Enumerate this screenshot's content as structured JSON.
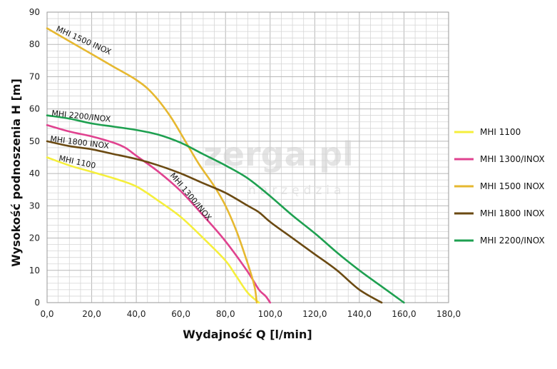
{
  "watermark": {
    "brand": "zerga.pl",
    "tagline": "narzędzia"
  },
  "chart_data": {
    "type": "line",
    "title": "",
    "xlabel": "Wydajność Q [l/min]",
    "ylabel": "Wysokość podnoszenia H [m]",
    "xlim": [
      0,
      180
    ],
    "ylim": [
      0,
      90
    ],
    "x_ticks": [
      0,
      20,
      40,
      60,
      80,
      100,
      120,
      140,
      160,
      180
    ],
    "x_tick_labels": [
      "0,0",
      "20,0",
      "40,0",
      "60,0",
      "80,0",
      "100,0",
      "120,0",
      "140,0",
      "160,0",
      "180,0"
    ],
    "y_ticks": [
      0,
      10,
      20,
      30,
      40,
      50,
      60,
      70,
      80,
      90
    ],
    "y_tick_labels": [
      "0",
      "10",
      "20",
      "30",
      "40",
      "50",
      "60",
      "70",
      "80",
      "90"
    ],
    "grid": true,
    "legend_position": "right",
    "series": [
      {
        "name": "MHI 1100",
        "color": "#f5ef3c",
        "label": "MHI 1100",
        "points": [
          [
            0,
            45
          ],
          [
            10,
            42.5
          ],
          [
            20,
            40.5
          ],
          [
            30,
            38.5
          ],
          [
            40,
            36
          ],
          [
            50,
            31.5
          ],
          [
            60,
            26.5
          ],
          [
            70,
            20
          ],
          [
            80,
            13
          ],
          [
            85,
            8
          ],
          [
            90,
            3
          ],
          [
            95,
            0
          ]
        ]
      },
      {
        "name": "MHI 1300/INOX",
        "color": "#e0428f",
        "label": "MHI 1300/INOX",
        "points": [
          [
            0,
            55
          ],
          [
            10,
            53
          ],
          [
            20,
            51.5
          ],
          [
            30,
            49.5
          ],
          [
            35,
            48
          ],
          [
            40,
            45.5
          ],
          [
            50,
            40.5
          ],
          [
            60,
            34.5
          ],
          [
            70,
            27
          ],
          [
            80,
            19
          ],
          [
            90,
            9.5
          ],
          [
            95,
            4
          ],
          [
            98,
            2
          ],
          [
            100,
            0
          ]
        ]
      },
      {
        "name": "MHI 1500 INOX",
        "color": "#e6b830",
        "label": "MHI 1500 INOX",
        "points": [
          [
            0,
            85
          ],
          [
            10,
            81
          ],
          [
            20,
            77
          ],
          [
            30,
            73
          ],
          [
            40,
            69
          ],
          [
            47,
            65
          ],
          [
            55,
            58
          ],
          [
            62,
            50
          ],
          [
            68,
            43
          ],
          [
            75,
            36
          ],
          [
            80,
            30
          ],
          [
            85,
            22
          ],
          [
            90,
            12
          ],
          [
            93,
            5
          ],
          [
            94,
            0
          ]
        ]
      },
      {
        "name": "MHI 1800 INOX",
        "color": "#6b4a12",
        "label": "MHI 1800 INOX",
        "points": [
          [
            0,
            50
          ],
          [
            10,
            48.5
          ],
          [
            20,
            47.5
          ],
          [
            30,
            46
          ],
          [
            40,
            44.5
          ],
          [
            50,
            42.5
          ],
          [
            60,
            40
          ],
          [
            70,
            37
          ],
          [
            80,
            34
          ],
          [
            90,
            30
          ],
          [
            95,
            28
          ],
          [
            100,
            25
          ],
          [
            110,
            20
          ],
          [
            120,
            15
          ],
          [
            130,
            10
          ],
          [
            140,
            4
          ],
          [
            150,
            0
          ]
        ]
      },
      {
        "name": "MHI 2200/INOX",
        "color": "#1ea050",
        "label": "MHI 2200/INOX",
        "points": [
          [
            0,
            58
          ],
          [
            10,
            57
          ],
          [
            20,
            55.5
          ],
          [
            30,
            54.5
          ],
          [
            40,
            53.5
          ],
          [
            50,
            52
          ],
          [
            60,
            49.5
          ],
          [
            70,
            46
          ],
          [
            80,
            42.5
          ],
          [
            90,
            38.5
          ],
          [
            100,
            33
          ],
          [
            110,
            27
          ],
          [
            120,
            21.5
          ],
          [
            130,
            15.5
          ],
          [
            140,
            10
          ],
          [
            150,
            5
          ],
          [
            160,
            0
          ]
        ]
      }
    ]
  }
}
